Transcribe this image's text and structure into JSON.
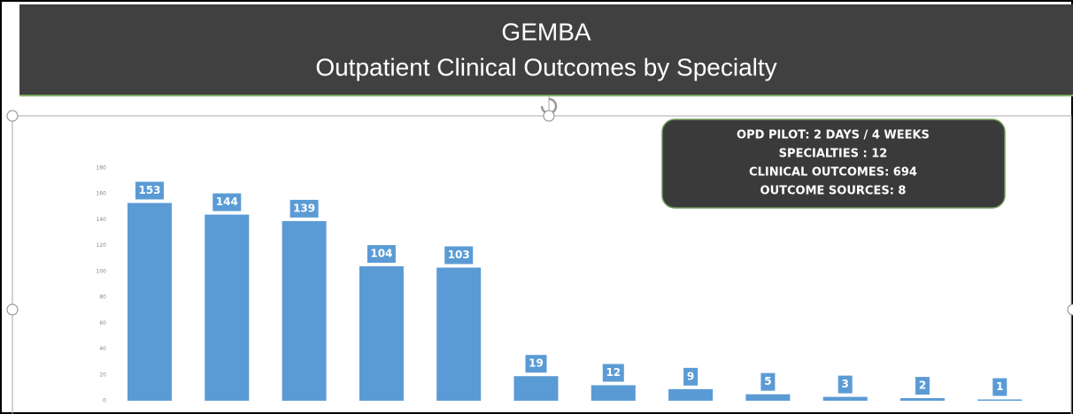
{
  "chart_data": {
    "type": "bar",
    "title": "GEMBA",
    "subtitle": "Outpatient Clinical Outcomes by Specialty",
    "info_box": [
      "OPD PILOT: 2 DAYS / 4 WEEKS",
      "SPECIALTIES : 12",
      "CLINICAL OUTCOMES: 694",
      "OUTCOME SOURCES: 8"
    ],
    "categories": [
      null,
      null,
      null,
      null,
      null,
      null,
      null,
      null,
      null,
      null,
      null,
      null
    ],
    "values": [
      153,
      144,
      139,
      104,
      103,
      19,
      12,
      9,
      5,
      3,
      2,
      1
    ],
    "color": "#5b9bd5",
    "ylim": [
      0,
      180
    ],
    "yticks": [
      0,
      20,
      40,
      60,
      80,
      100,
      120,
      140,
      160,
      180
    ],
    "grid": false
  }
}
